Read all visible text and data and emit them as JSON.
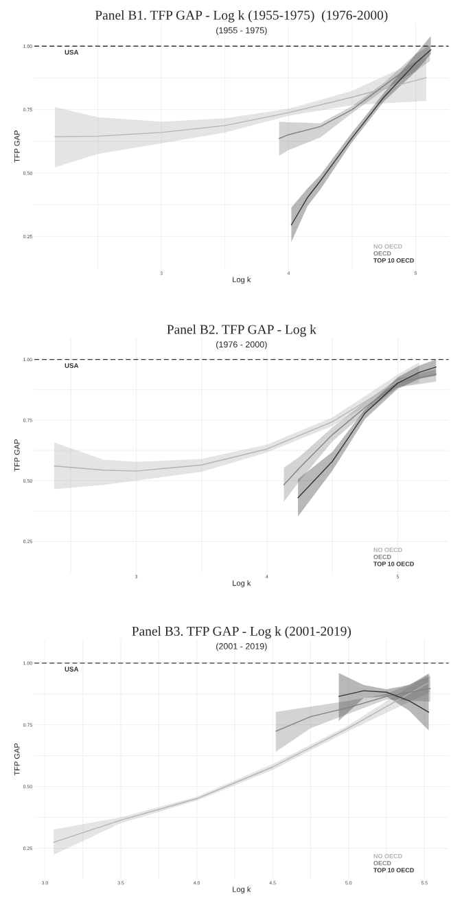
{
  "chart_data": [
    {
      "type": "line",
      "title": "Panel B1. TFP GAP - Log k (1955-1975)  (1976-2000)",
      "subtitle": "(1955 - 1975)",
      "xlabel": "Log k",
      "ylabel": "TFP GAP",
      "xlim": [
        2.0,
        5.26
      ],
      "ylim": [
        0.12,
        1.09
      ],
      "xticks": [
        {
          "value": 2.5,
          "label": null
        },
        3,
        {
          "value": 3.5,
          "label": null
        },
        4,
        {
          "value": 4.5,
          "label": null
        },
        5
      ],
      "yticks": [
        {
          "value": 0.25,
          "label": "0.25"
        },
        {
          "value": 0.375,
          "label": null
        },
        {
          "value": 0.5,
          "label": "0.50"
        },
        {
          "value": 0.625,
          "label": null
        },
        {
          "value": 0.75,
          "label": "0.75"
        },
        {
          "value": 0.875,
          "label": null
        },
        {
          "value": 1.0,
          "label": "1.00"
        }
      ],
      "grid": true,
      "legend": "bottom right",
      "ref_lines": [
        {
          "axis": "y",
          "value": 1.0,
          "line_style": "dashed",
          "color": "#333333"
        }
      ],
      "annotations": [
        "USA"
      ],
      "series": [
        {
          "name": "NO OECD",
          "color": "#b3b3b3",
          "x": [
            2.163,
            2.5,
            3.0,
            3.5,
            4.0,
            4.5,
            5.083
          ],
          "values": [
            0.643,
            0.645,
            0.66,
            0.687,
            0.738,
            0.799,
            0.876
          ],
          "lower": [
            0.522,
            0.575,
            0.617,
            0.66,
            0.725,
            0.767,
            0.784
          ],
          "upper": [
            0.76,
            0.72,
            0.702,
            0.716,
            0.753,
            0.824,
            0.958
          ]
        },
        {
          "name": "OECD",
          "color": "#808080",
          "x": [
            3.926,
            4.0,
            4.25,
            4.5,
            4.75,
            5.0,
            5.112
          ],
          "values": [
            0.636,
            0.651,
            0.683,
            0.75,
            0.844,
            0.937,
            0.981
          ],
          "lower": [
            0.568,
            0.59,
            0.64,
            0.736,
            0.827,
            0.901,
            0.941
          ],
          "upper": [
            0.702,
            0.7,
            0.696,
            0.764,
            0.856,
            0.969,
            1.003
          ]
        },
        {
          "name": "TOP 10 OECD",
          "color": "#333333",
          "x": [
            4.022,
            4.15,
            4.25,
            4.5,
            4.75,
            5.0,
            5.119
          ],
          "values": [
            0.295,
            0.404,
            0.469,
            0.639,
            0.799,
            0.933,
            0.986
          ],
          "lower": [
            0.228,
            0.37,
            0.435,
            0.622,
            0.782,
            0.9,
            0.969
          ],
          "upper": [
            0.364,
            0.44,
            0.492,
            0.66,
            0.816,
            0.969,
            1.04
          ]
        }
      ]
    },
    {
      "type": "line",
      "title": "Panel B2. TFP GAP - Log k",
      "subtitle": "(1976 - 2000)",
      "xlabel": "Log k",
      "ylabel": "TFP GAP",
      "xlim": [
        2.22,
        5.39
      ],
      "ylim": [
        0.12,
        1.09
      ],
      "xticks": [
        {
          "value": 2.5,
          "label": null
        },
        3,
        {
          "value": 3.5,
          "label": null
        },
        4,
        {
          "value": 4.5,
          "label": null
        },
        5
      ],
      "yticks": [
        {
          "value": 0.25,
          "label": "0.25"
        },
        {
          "value": 0.375,
          "label": null
        },
        {
          "value": 0.5,
          "label": "0.50"
        },
        {
          "value": 0.625,
          "label": null
        },
        {
          "value": 0.75,
          "label": "0.75"
        },
        {
          "value": 0.875,
          "label": null
        },
        {
          "value": 1.0,
          "label": "1.00"
        }
      ],
      "grid": true,
      "legend": "bottom right",
      "ref_lines": [
        {
          "axis": "y",
          "value": 1.0,
          "line_style": "dashed",
          "color": "#333333"
        }
      ],
      "annotations": [
        "USA"
      ],
      "series": [
        {
          "name": "NO OECD",
          "color": "#b3b3b3",
          "x": [
            2.373,
            2.75,
            3.0,
            3.5,
            4.0,
            4.5,
            5.0,
            5.164
          ],
          "values": [
            0.561,
            0.544,
            0.54,
            0.565,
            0.631,
            0.743,
            0.909,
            0.947
          ],
          "lower": [
            0.465,
            0.483,
            0.501,
            0.537,
            0.617,
            0.726,
            0.885,
            0.903
          ],
          "upper": [
            0.658,
            0.587,
            0.578,
            0.59,
            0.649,
            0.761,
            0.938,
            0.989
          ]
        },
        {
          "name": "OECD",
          "color": "#808080",
          "x": [
            4.129,
            4.25,
            4.5,
            4.75,
            5.0,
            5.293
          ],
          "values": [
            0.483,
            0.554,
            0.69,
            0.802,
            0.903,
            0.94
          ],
          "lower": [
            0.414,
            0.5,
            0.662,
            0.78,
            0.885,
            0.909
          ],
          "upper": [
            0.554,
            0.6,
            0.72,
            0.825,
            0.921,
            0.959
          ]
        },
        {
          "name": "TOP 10 OECD",
          "color": "#333333",
          "x": [
            4.237,
            4.5,
            4.75,
            5.0,
            5.164,
            5.293
          ],
          "values": [
            0.43,
            0.58,
            0.779,
            0.903,
            0.947,
            0.969
          ],
          "lower": [
            0.353,
            0.542,
            0.755,
            0.879,
            0.92,
            0.933
          ],
          "upper": [
            0.507,
            0.619,
            0.796,
            0.927,
            0.975,
            1.0
          ]
        }
      ]
    },
    {
      "type": "line",
      "title": "Panel B3. TFP GAP - Log k (2001-2019)",
      "subtitle": "(2001 - 2019)",
      "xlabel": "Log k",
      "ylabel": "TFP GAP",
      "xlim": [
        2.93,
        5.66
      ],
      "ylim": [
        0.125,
        1.096
      ],
      "xticks": [
        {
          "value": 3.0,
          "label": "3.0"
        },
        {
          "value": 3.25,
          "label": null
        },
        {
          "value": 3.5,
          "label": "3.5"
        },
        {
          "value": 3.75,
          "label": null
        },
        {
          "value": 4.0,
          "label": "4.0"
        },
        {
          "value": 4.25,
          "label": null
        },
        {
          "value": 4.5,
          "label": "4.5"
        },
        {
          "value": 4.75,
          "label": null
        },
        {
          "value": 5.0,
          "label": "5.0"
        },
        {
          "value": 5.25,
          "label": null
        },
        {
          "value": 5.5,
          "label": "5.5"
        }
      ],
      "yticks": [
        {
          "value": 0.25,
          "label": "0.25"
        },
        {
          "value": 0.375,
          "label": null
        },
        {
          "value": 0.5,
          "label": "0.50"
        },
        {
          "value": 0.625,
          "label": null
        },
        {
          "value": 0.75,
          "label": "0.75"
        },
        {
          "value": 0.875,
          "label": null
        },
        {
          "value": 1.0,
          "label": "1.00"
        }
      ],
      "grid": true,
      "legend": "bottom right",
      "ref_lines": [
        {
          "axis": "y",
          "value": 1.0,
          "line_style": "dashed",
          "color": "#333333"
        }
      ],
      "annotations": [
        "USA"
      ],
      "series": [
        {
          "name": "NO OECD",
          "color": "#b3b3b3",
          "x": [
            3.058,
            3.5,
            4.0,
            4.5,
            5.0,
            5.535
          ],
          "values": [
            0.274,
            0.364,
            0.451,
            0.579,
            0.737,
            0.923
          ],
          "lower": [
            0.224,
            0.352,
            0.443,
            0.567,
            0.725,
            0.882
          ],
          "upper": [
            0.326,
            0.375,
            0.459,
            0.591,
            0.748,
            0.958
          ]
        },
        {
          "name": "OECD",
          "color": "#808080",
          "x": [
            4.521,
            4.75,
            5.0,
            5.25,
            5.539
          ],
          "values": [
            0.724,
            0.783,
            0.82,
            0.865,
            0.897
          ],
          "lower": [
            0.641,
            0.736,
            0.795,
            0.853,
            0.844
          ],
          "upper": [
            0.802,
            0.824,
            0.847,
            0.876,
            0.949
          ]
        },
        {
          "name": "TOP 10 OECD",
          "color": "#333333",
          "x": [
            4.936,
            5.1,
            5.25,
            5.4,
            5.528
          ],
          "values": [
            0.865,
            0.888,
            0.882,
            0.847,
            0.801
          ],
          "lower": [
            0.766,
            0.859,
            0.865,
            0.807,
            0.727
          ],
          "upper": [
            0.96,
            0.911,
            0.894,
            0.911,
            0.958
          ]
        }
      ]
    }
  ]
}
